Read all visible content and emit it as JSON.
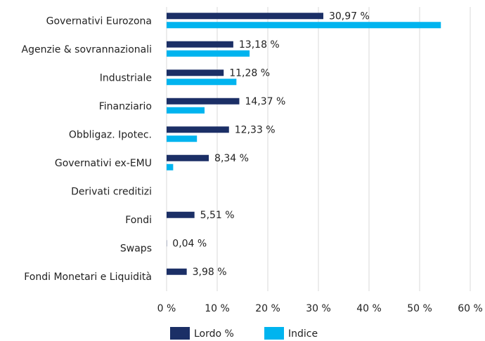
{
  "chart_data": {
    "type": "hbar",
    "categories": [
      "Governativi Eurozona",
      "Agenzie & sovrannazionali",
      "Industriale",
      "Finanziario",
      "Obbligaz. Ipotec.",
      "Governativi ex-EMU",
      "Derivati creditizi",
      "Fondi",
      "Swaps",
      "Fondi Monetari e Liquidità"
    ],
    "series": [
      {
        "name": "Lordo %",
        "color": "#1b2f66",
        "values": [
          30.97,
          13.18,
          11.28,
          14.37,
          12.33,
          8.34,
          null,
          5.51,
          0.04,
          3.98
        ],
        "value_labels": [
          "30,97 %",
          "13,18 %",
          "11,28 %",
          "14,37 %",
          "12,33 %",
          "8,34 %",
          null,
          "5,51 %",
          "0,04 %",
          "3,98 %"
        ]
      },
      {
        "name": "Indice",
        "color": "#00b4ef",
        "values": [
          54.2,
          16.4,
          13.8,
          7.5,
          6.0,
          1.3,
          null,
          null,
          null,
          null
        ]
      }
    ],
    "xlim": [
      0,
      60
    ],
    "xticks": [
      {
        "value": 0,
        "label": "0 %"
      },
      {
        "value": 10,
        "label": "10 %"
      },
      {
        "value": 20,
        "label": "20 %"
      },
      {
        "value": 30,
        "label": "30 %"
      },
      {
        "value": 40,
        "label": "40 %"
      },
      {
        "value": 50,
        "label": "50 %"
      },
      {
        "value": 60,
        "label": "60 %"
      }
    ],
    "grid": true,
    "legend": "bottom"
  }
}
